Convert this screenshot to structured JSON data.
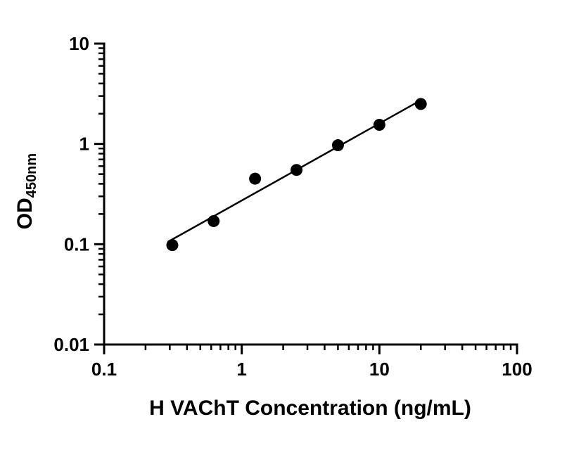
{
  "figure": {
    "background": "#ffffff"
  },
  "chart_data": {
    "type": "scatter",
    "title": "",
    "xlabel": "H VAChT Concentration (ng/mL)",
    "ylabel_main": "OD",
    "ylabel_sub": "450nm",
    "x_scale": "log10",
    "y_scale": "log10",
    "xlim": [
      0.1,
      100
    ],
    "ylim": [
      0.01,
      10
    ],
    "x_ticks": [
      {
        "v": 0.1,
        "label": "0.1"
      },
      {
        "v": 1,
        "label": "1"
      },
      {
        "v": 10,
        "label": "10"
      },
      {
        "v": 100,
        "label": "100"
      }
    ],
    "y_ticks": [
      {
        "v": 0.01,
        "label": "0.01"
      },
      {
        "v": 0.1,
        "label": "0.1"
      },
      {
        "v": 1,
        "label": "1"
      },
      {
        "v": 10,
        "label": "10"
      }
    ],
    "grid": false,
    "legend": false,
    "points": [
      {
        "x": 0.313,
        "y": 0.098
      },
      {
        "x": 0.625,
        "y": 0.17
      },
      {
        "x": 1.25,
        "y": 0.45
      },
      {
        "x": 2.5,
        "y": 0.55
      },
      {
        "x": 5.0,
        "y": 0.97
      },
      {
        "x": 10.0,
        "y": 1.55
      },
      {
        "x": 20.0,
        "y": 2.5
      }
    ],
    "trendline": {
      "fit": "linear-in-log-log",
      "x_start": 0.29,
      "x_end": 20
    },
    "marker": {
      "shape": "circle",
      "radius": 8.5,
      "color": "#000000"
    },
    "line_color": "#000000",
    "axis_color": "#000000",
    "text_color": "#000000"
  }
}
